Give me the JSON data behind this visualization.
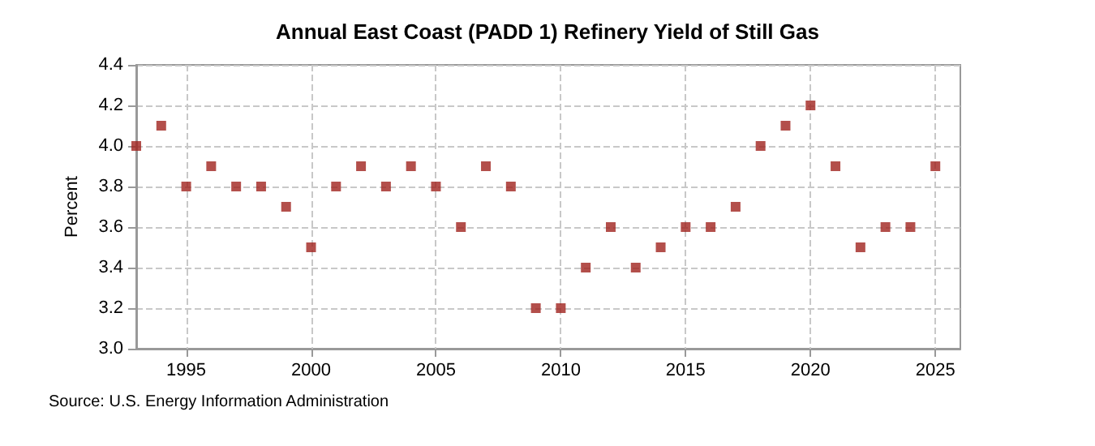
{
  "chart_data": {
    "type": "scatter",
    "title": "Annual East Coast (PADD 1) Refinery Yield of Still Gas",
    "ylabel": "Percent",
    "x": [
      1993,
      1994,
      1995,
      1996,
      1997,
      1998,
      1999,
      2000,
      2001,
      2002,
      2003,
      2004,
      2005,
      2006,
      2007,
      2008,
      2009,
      2010,
      2011,
      2012,
      2013,
      2014,
      2015,
      2016,
      2017,
      2018,
      2019,
      2020,
      2021,
      2022,
      2023,
      2024,
      2025
    ],
    "series": [
      {
        "color": "#a0231e",
        "values": [
          4.0,
          4.1,
          3.8,
          3.9,
          3.8,
          3.8,
          3.7,
          3.5,
          3.8,
          3.9,
          3.8,
          3.9,
          3.8,
          3.6,
          3.9,
          3.8,
          3.2,
          3.2,
          3.4,
          3.6,
          3.4,
          3.5,
          3.6,
          3.6,
          3.7,
          4.0,
          4.1,
          4.2,
          3.9,
          3.5,
          3.6,
          3.6,
          3.9
        ]
      }
    ],
    "xlim": [
      1993,
      2026
    ],
    "xticks": [
      1995,
      2000,
      2005,
      2010,
      2015,
      2020,
      2025
    ],
    "ylim": [
      3.0,
      4.4
    ],
    "yticks": [
      {
        "value": 3.0,
        "label": "3.0"
      },
      {
        "value": 3.2,
        "label": "3.2"
      },
      {
        "value": 3.4,
        "label": "3.4"
      },
      {
        "value": 3.6,
        "label": "3.6"
      },
      {
        "value": 3.8,
        "label": "3.8"
      },
      {
        "value": 4.0,
        "label": "4.0"
      },
      {
        "value": 4.2,
        "label": "4.2"
      },
      {
        "value": 4.4,
        "label": "4.4"
      }
    ],
    "grid": true,
    "marker": "square",
    "annotations": [
      "Source: U.S. Energy Information Administration"
    ]
  }
}
